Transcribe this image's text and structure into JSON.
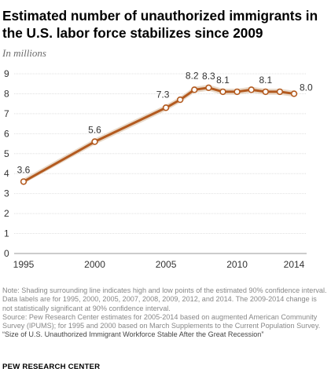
{
  "header": {
    "title": "Estimated number of unauthorized immigrants in the U.S. labor force stabilizes since 2009",
    "subtitle": "In millions"
  },
  "chart_data": {
    "type": "line",
    "x": [
      1995,
      2000,
      2005,
      2006,
      2007,
      2008,
      2009,
      2010,
      2011,
      2012,
      2013,
      2014
    ],
    "series": [
      {
        "values": [
          3.6,
          5.6,
          7.3,
          7.7,
          8.2,
          8.3,
          8.1,
          8.1,
          8.2,
          8.1,
          8.1,
          8.0
        ],
        "low": [
          3.5,
          5.45,
          7.15,
          7.55,
          8.05,
          8.15,
          7.95,
          7.95,
          8.05,
          7.95,
          7.95,
          7.85
        ],
        "high": [
          3.75,
          5.75,
          7.45,
          7.85,
          8.35,
          8.45,
          8.25,
          8.25,
          8.35,
          8.25,
          8.25,
          8.15
        ]
      }
    ],
    "data_labels": [
      {
        "x": 1995,
        "text": "3.6"
      },
      {
        "x": 2000,
        "text": "5.6"
      },
      {
        "x": 2005,
        "text": "7.3"
      },
      {
        "x": 2007,
        "text": "8.2"
      },
      {
        "x": 2008,
        "text": "8.3"
      },
      {
        "x": 2009,
        "text": "8.1"
      },
      {
        "x": 2012,
        "text": "8.1"
      },
      {
        "x": 2014,
        "text": "8.0"
      }
    ],
    "x_ticks": [
      1995,
      2000,
      2005,
      2010,
      2014
    ],
    "y_ticks": [
      0,
      1,
      2,
      3,
      4,
      5,
      6,
      7,
      8,
      9
    ],
    "xlim": [
      1995,
      2014
    ],
    "ylim": [
      0,
      9
    ],
    "grid": true,
    "colors": {
      "line": "#b35a1f",
      "band": "#e8d9c9",
      "grid": "#e0e0e0"
    }
  },
  "footer": {
    "note": "Note: Shading surrounding line indicates high and low points of the estimated 90% confidence interval. Data labels are for 1995, 2000, 2005, 2007, 2008, 2009, 2012, and 2014. The 2009-2014 change is not statistically significant at 90% confidence interval.",
    "source": "Source: Pew Research Center estimates for 2005-2014 based on augmented American Community Survey (IPUMS); for 1995 and 2000 based on March Supplements to the Current Population Survey.",
    "report": "“Size of U.S. Unauthorized Immigrant Workforce Stable After the Great Recession”",
    "brand": "PEW RESEARCH CENTER"
  }
}
